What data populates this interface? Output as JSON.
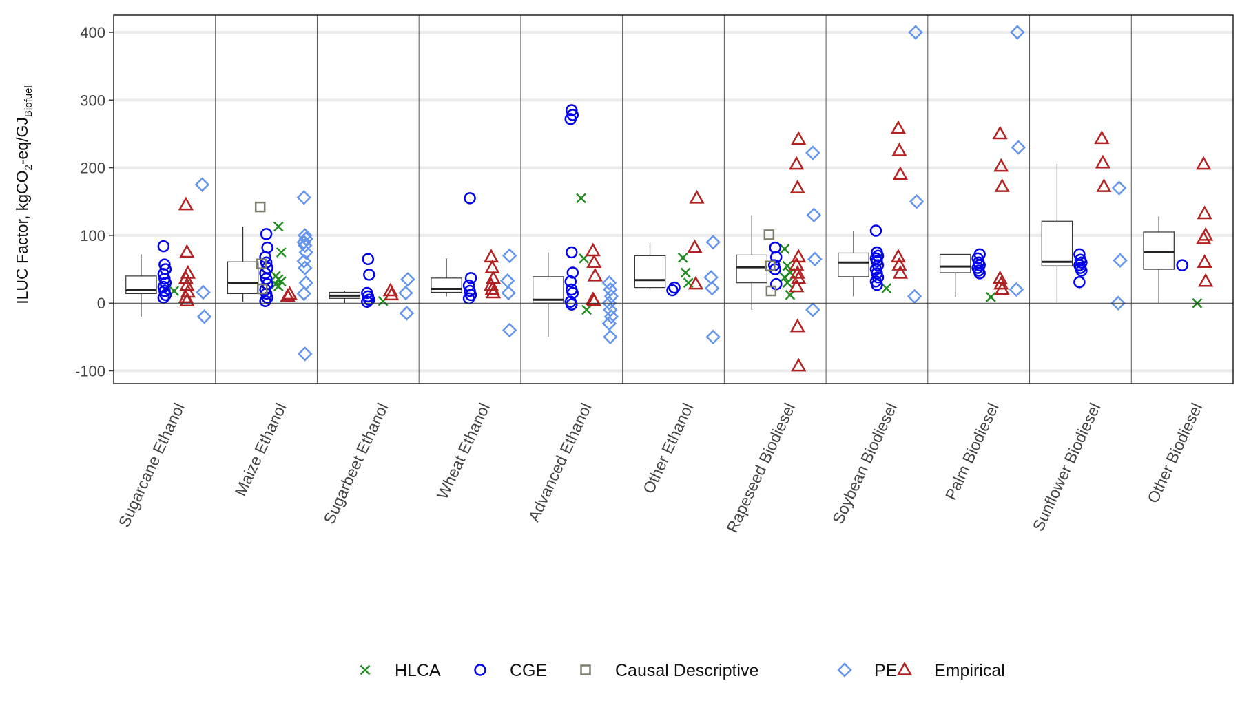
{
  "chart_data": {
    "type": "scatter",
    "subtype": "box plot with jittered points by method",
    "ylabel": {
      "main": "ILUC Factor, kgCO",
      "sub1": "2",
      "mid": "-eq/GJ",
      "sub2": "Biofuel"
    },
    "ylim": [
      -120,
      425
    ],
    "yticks": [
      -100,
      0,
      100,
      200,
      300,
      400
    ],
    "grid": true,
    "legend_position": "bottom",
    "categories": [
      "Sugarcane Ethanol",
      "Maize Ethanol",
      "Sugarbeet Ethanol",
      "Wheat Ethanol",
      "Advanced Ethanol",
      "Other Ethanol",
      "Rapeseed Biodiesel",
      "Soybean Biodiesel",
      "Palm Biodiesel",
      "Sunflower Biodiesel",
      "Other Biodiesel"
    ],
    "boxes": [
      {
        "lower": -20,
        "q1": 14,
        "median": 19,
        "q3": 40,
        "upper": 72
      },
      {
        "lower": 2,
        "q1": 14,
        "median": 30,
        "q3": 61,
        "upper": 113
      },
      {
        "lower": 0,
        "q1": 7,
        "median": 11,
        "q3": 16,
        "upper": 18
      },
      {
        "lower": 10,
        "q1": 16,
        "median": 21,
        "q3": 37,
        "upper": 66
      },
      {
        "lower": -50,
        "q1": 0,
        "median": 5,
        "q3": 39,
        "upper": 75
      },
      {
        "lower": 20,
        "q1": 23,
        "median": 34,
        "q3": 70,
        "upper": 89
      },
      {
        "lower": -10,
        "q1": 30,
        "median": 53,
        "q3": 71,
        "upper": 130
      },
      {
        "lower": 10,
        "q1": 39,
        "median": 60,
        "q3": 74,
        "upper": 106
      },
      {
        "lower": 9,
        "q1": 45,
        "median": 54,
        "q3": 72,
        "upper": 72
      },
      {
        "lower": 0,
        "q1": 55,
        "median": 61,
        "q3": 121,
        "upper": 206
      },
      {
        "lower": 0,
        "q1": 50,
        "median": 75,
        "q3": 105,
        "upper": 128
      }
    ],
    "series": [
      {
        "name": "HLCA",
        "marker": "x",
        "color": "#228B22",
        "points": [
          [
            0,
            18
          ],
          [
            1,
            113
          ],
          [
            1,
            75
          ],
          [
            1,
            40
          ],
          [
            1,
            35
          ],
          [
            1,
            32
          ],
          [
            1,
            28
          ],
          [
            1,
            25
          ],
          [
            2,
            3
          ],
          [
            4,
            155
          ],
          [
            4,
            66
          ],
          [
            4,
            -10
          ],
          [
            5,
            67
          ],
          [
            5,
            45
          ],
          [
            5,
            30
          ],
          [
            6,
            80
          ],
          [
            6,
            55
          ],
          [
            6,
            45
          ],
          [
            6,
            38
          ],
          [
            6,
            30
          ],
          [
            6,
            12
          ],
          [
            7,
            22
          ],
          [
            8,
            9
          ],
          [
            10,
            0
          ]
        ]
      },
      {
        "name": "CGE",
        "marker": "circle",
        "color": "#0000EE",
        "points": [
          [
            0,
            84
          ],
          [
            0,
            57
          ],
          [
            0,
            50
          ],
          [
            0,
            43
          ],
          [
            0,
            36
          ],
          [
            0,
            30
          ],
          [
            0,
            24
          ],
          [
            0,
            18
          ],
          [
            0,
            12
          ],
          [
            0,
            8
          ],
          [
            1,
            102
          ],
          [
            1,
            82
          ],
          [
            1,
            68
          ],
          [
            1,
            60
          ],
          [
            1,
            52
          ],
          [
            1,
            44
          ],
          [
            1,
            36
          ],
          [
            1,
            28
          ],
          [
            1,
            20
          ],
          [
            1,
            14
          ],
          [
            1,
            8
          ],
          [
            1,
            3
          ],
          [
            2,
            65
          ],
          [
            2,
            42
          ],
          [
            2,
            15
          ],
          [
            2,
            10
          ],
          [
            2,
            5
          ],
          [
            2,
            2
          ],
          [
            3,
            155
          ],
          [
            3,
            37
          ],
          [
            3,
            26
          ],
          [
            3,
            18
          ],
          [
            3,
            12
          ],
          [
            3,
            7
          ],
          [
            4,
            285
          ],
          [
            4,
            278
          ],
          [
            4,
            272
          ],
          [
            4,
            75
          ],
          [
            4,
            45
          ],
          [
            4,
            32
          ],
          [
            4,
            20
          ],
          [
            4,
            15
          ],
          [
            4,
            2
          ],
          [
            4,
            -2
          ],
          [
            5,
            23
          ],
          [
            5,
            19
          ],
          [
            6,
            82
          ],
          [
            6,
            68
          ],
          [
            6,
            56
          ],
          [
            6,
            50
          ],
          [
            6,
            28
          ],
          [
            7,
            107
          ],
          [
            7,
            75
          ],
          [
            7,
            70
          ],
          [
            7,
            66
          ],
          [
            7,
            62
          ],
          [
            7,
            56
          ],
          [
            7,
            50
          ],
          [
            7,
            44
          ],
          [
            7,
            38
          ],
          [
            7,
            32
          ],
          [
            7,
            27
          ],
          [
            8,
            72
          ],
          [
            8,
            66
          ],
          [
            8,
            60
          ],
          [
            8,
            56
          ],
          [
            8,
            52
          ],
          [
            8,
            48
          ],
          [
            8,
            44
          ],
          [
            9,
            72
          ],
          [
            9,
            64
          ],
          [
            9,
            60
          ],
          [
            9,
            56
          ],
          [
            9,
            52
          ],
          [
            9,
            48
          ],
          [
            9,
            31
          ],
          [
            10,
            56
          ]
        ]
      },
      {
        "name": "Causal Descriptive",
        "marker": "square",
        "color": "#7F7F6F",
        "points": [
          [
            1,
            142
          ],
          [
            1,
            58
          ],
          [
            1,
            21
          ],
          [
            6,
            101
          ],
          [
            6,
            55
          ],
          [
            6,
            18
          ]
        ]
      },
      {
        "name": "PE",
        "marker": "diamond",
        "color": "#6495ED",
        "points": [
          [
            0,
            175
          ],
          [
            0,
            16
          ],
          [
            0,
            -20
          ],
          [
            1,
            156
          ],
          [
            1,
            100
          ],
          [
            1,
            95
          ],
          [
            1,
            90
          ],
          [
            1,
            85
          ],
          [
            1,
            75
          ],
          [
            1,
            62
          ],
          [
            1,
            52
          ],
          [
            1,
            30
          ],
          [
            1,
            14
          ],
          [
            1,
            -75
          ],
          [
            2,
            35
          ],
          [
            2,
            15
          ],
          [
            2,
            -15
          ],
          [
            3,
            70
          ],
          [
            3,
            33
          ],
          [
            3,
            15
          ],
          [
            3,
            -40
          ],
          [
            4,
            30
          ],
          [
            4,
            20
          ],
          [
            4,
            10
          ],
          [
            4,
            0
          ],
          [
            4,
            -10
          ],
          [
            4,
            -20
          ],
          [
            4,
            -30
          ],
          [
            4,
            -50
          ],
          [
            5,
            90
          ],
          [
            5,
            38
          ],
          [
            5,
            22
          ],
          [
            5,
            -50
          ],
          [
            6,
            222
          ],
          [
            6,
            130
          ],
          [
            6,
            65
          ],
          [
            6,
            -10
          ],
          [
            7,
            400
          ],
          [
            7,
            150
          ],
          [
            7,
            10
          ],
          [
            8,
            400
          ],
          [
            8,
            230
          ],
          [
            8,
            20
          ],
          [
            9,
            170
          ],
          [
            9,
            63
          ],
          [
            9,
            0
          ]
        ]
      },
      {
        "name": "Empirical",
        "marker": "triangle",
        "color": "#B22222",
        "points": [
          [
            0,
            145
          ],
          [
            0,
            75
          ],
          [
            0,
            44
          ],
          [
            0,
            36
          ],
          [
            0,
            26
          ],
          [
            0,
            16
          ],
          [
            0,
            8
          ],
          [
            0,
            3
          ],
          [
            1,
            13
          ],
          [
            1,
            10
          ],
          [
            2,
            18
          ],
          [
            2,
            12
          ],
          [
            3,
            68
          ],
          [
            3,
            52
          ],
          [
            3,
            36
          ],
          [
            3,
            26
          ],
          [
            3,
            20
          ],
          [
            3,
            15
          ],
          [
            4,
            77
          ],
          [
            4,
            60
          ],
          [
            4,
            40
          ],
          [
            4,
            5
          ],
          [
            4,
            3
          ],
          [
            5,
            155
          ],
          [
            5,
            82
          ],
          [
            5,
            28
          ],
          [
            6,
            242
          ],
          [
            6,
            205
          ],
          [
            6,
            170
          ],
          [
            6,
            68
          ],
          [
            6,
            56
          ],
          [
            6,
            44
          ],
          [
            6,
            36
          ],
          [
            6,
            24
          ],
          [
            6,
            -35
          ],
          [
            6,
            -93
          ],
          [
            7,
            258
          ],
          [
            7,
            225
          ],
          [
            7,
            190
          ],
          [
            7,
            68
          ],
          [
            7,
            56
          ],
          [
            7,
            44
          ],
          [
            8,
            250
          ],
          [
            8,
            202
          ],
          [
            8,
            172
          ],
          [
            8,
            36
          ],
          [
            8,
            28
          ],
          [
            8,
            20
          ],
          [
            9,
            243
          ],
          [
            9,
            207
          ],
          [
            9,
            172
          ],
          [
            10,
            205
          ],
          [
            10,
            132
          ],
          [
            10,
            100
          ],
          [
            10,
            95
          ],
          [
            10,
            60
          ],
          [
            10,
            32
          ]
        ]
      }
    ]
  }
}
